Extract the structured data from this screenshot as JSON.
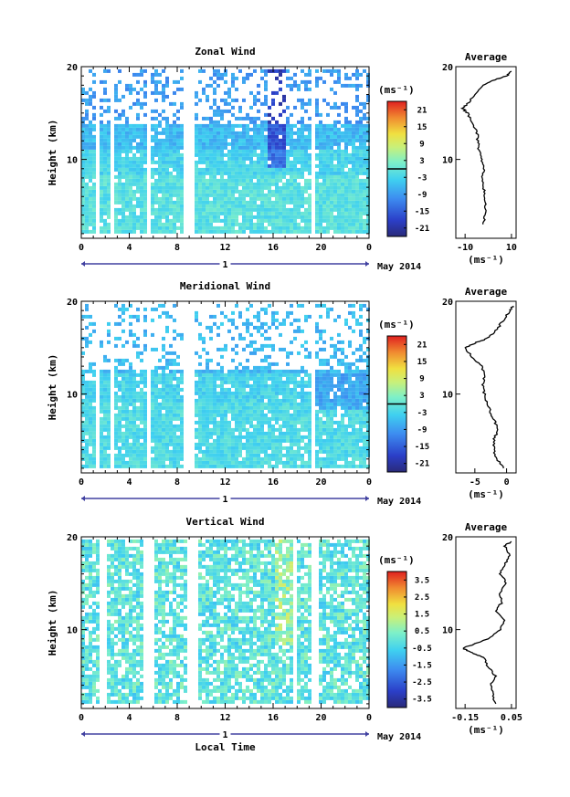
{
  "chart_data": [
    {
      "type": "heatmap",
      "title": "Zonal Wind",
      "xlabel": "",
      "ylabel": "Height (km)",
      "x_ticks": [
        "0",
        "4",
        "8",
        "12",
        "16",
        "20",
        "0"
      ],
      "y_ticks": [
        "10",
        "20"
      ],
      "date_axis": {
        "day": "1",
        "month": "May 2014"
      },
      "colorbar": {
        "unit": "(ms⁻¹)",
        "ticks": [
          "21",
          "15",
          "9",
          "3",
          "-3",
          "-9",
          "-15",
          "-21"
        ],
        "range": [
          -24,
          24
        ],
        "zero_line": 0
      },
      "average": {
        "title": "Average",
        "xlabel": "(ms⁻¹)",
        "x_ticks": [
          "-10",
          "10"
        ],
        "y_ticks": [
          "10",
          "20"
        ],
        "xlim": [
          -14,
          12
        ],
        "ylim": [
          1.5,
          20
        ],
        "profile": [
          [
            3,
            -2
          ],
          [
            4,
            -1.5
          ],
          [
            5,
            -1
          ],
          [
            6,
            -1.5
          ],
          [
            7,
            -2
          ],
          [
            8,
            -2.5
          ],
          [
            9,
            -2
          ],
          [
            10,
            -3
          ],
          [
            11,
            -4
          ],
          [
            12,
            -4.5
          ],
          [
            13,
            -5
          ],
          [
            14,
            -7
          ],
          [
            15,
            -9
          ],
          [
            15.5,
            -11
          ],
          [
            16,
            -9
          ],
          [
            17,
            -6
          ],
          [
            18,
            -2
          ],
          [
            18.5,
            2
          ],
          [
            19,
            8
          ],
          [
            19.5,
            10
          ]
        ]
      }
    },
    {
      "type": "heatmap",
      "title": "Meridional Wind",
      "xlabel": "",
      "ylabel": "Height (km)",
      "x_ticks": [
        "0",
        "4",
        "8",
        "12",
        "16",
        "20",
        "0"
      ],
      "y_ticks": [
        "10",
        "20"
      ],
      "date_axis": {
        "day": "1",
        "month": "May 2014"
      },
      "colorbar": {
        "unit": "(ms⁻¹)",
        "ticks": [
          "21",
          "15",
          "9",
          "3",
          "-3",
          "-9",
          "-15",
          "-21"
        ],
        "range": [
          -24,
          24
        ],
        "zero_line": 0
      },
      "average": {
        "title": "Average",
        "xlabel": "(ms⁻¹)",
        "x_ticks": [
          "-5",
          "0"
        ],
        "y_ticks": [
          "10",
          "20"
        ],
        "xlim": [
          -8,
          1.5
        ],
        "ylim": [
          1.5,
          20
        ],
        "profile": [
          [
            2,
            -0.5
          ],
          [
            3,
            -1.5
          ],
          [
            4,
            -2
          ],
          [
            5,
            -2
          ],
          [
            6,
            -1.5
          ],
          [
            7,
            -1.8
          ],
          [
            8,
            -2.5
          ],
          [
            9,
            -3
          ],
          [
            10,
            -3.5
          ],
          [
            11,
            -3.8
          ],
          [
            12,
            -3.5
          ],
          [
            13,
            -4
          ],
          [
            14,
            -5.5
          ],
          [
            15,
            -6.5
          ],
          [
            15.5,
            -5
          ],
          [
            16,
            -3
          ],
          [
            17,
            -1.5
          ],
          [
            18,
            -0.5
          ],
          [
            19,
            0.5
          ],
          [
            19.5,
            1
          ]
        ]
      }
    },
    {
      "type": "heatmap",
      "title": "Vertical Wind",
      "xlabel": "Local Time",
      "ylabel": "Height (km)",
      "x_ticks": [
        "0",
        "4",
        "8",
        "12",
        "16",
        "20",
        "0"
      ],
      "y_ticks": [
        "10",
        "20"
      ],
      "date_axis": {
        "day": "1",
        "month": "May 2014"
      },
      "colorbar": {
        "unit": "(ms⁻¹)",
        "ticks": [
          "3.5",
          "2.5",
          "1.5",
          "0.5",
          "-0.5",
          "-1.5",
          "-2.5",
          "-3.5"
        ],
        "range": [
          -4,
          4
        ],
        "zero_line": null
      },
      "average": {
        "title": "Average",
        "xlabel": "(ms⁻¹)",
        "x_ticks": [
          "-0.15",
          "0.05"
        ],
        "y_ticks": [
          "10",
          "20"
        ],
        "xlim": [
          -0.19,
          0.07
        ],
        "ylim": [
          1.5,
          20
        ],
        "profile": [
          [
            2,
            -0.02
          ],
          [
            3,
            -0.03
          ],
          [
            4,
            -0.04
          ],
          [
            5,
            -0.02
          ],
          [
            6,
            -0.05
          ],
          [
            7,
            -0.07
          ],
          [
            7.5,
            -0.12
          ],
          [
            8,
            -0.16
          ],
          [
            9,
            -0.05
          ],
          [
            10,
            0.0
          ],
          [
            11,
            0.02
          ],
          [
            12,
            -0.02
          ],
          [
            13,
            0.01
          ],
          [
            14,
            0.0
          ],
          [
            15,
            0.03
          ],
          [
            16,
            0.0
          ],
          [
            17,
            0.02
          ],
          [
            18,
            0.04
          ],
          [
            19,
            0.02
          ],
          [
            19.5,
            0.05
          ]
        ]
      }
    }
  ]
}
